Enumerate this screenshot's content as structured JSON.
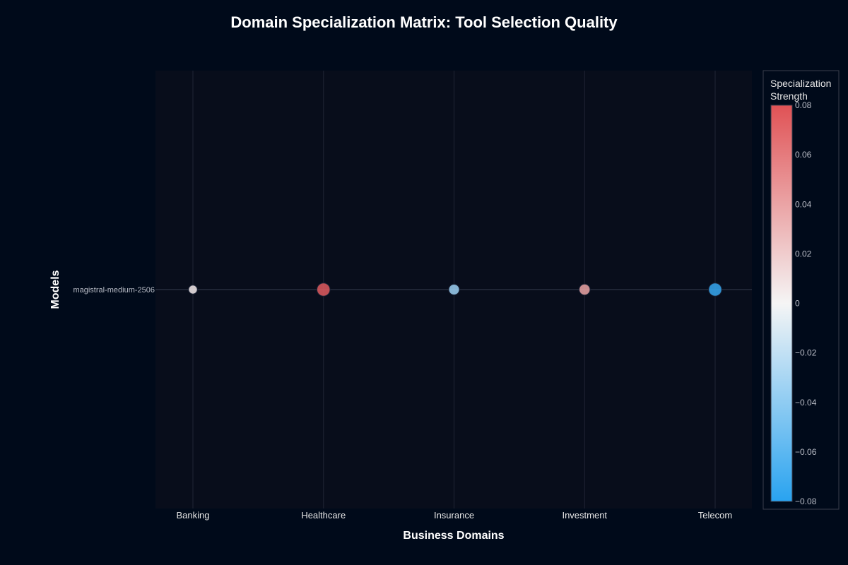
{
  "chart_data": {
    "type": "scatter",
    "title": "Domain Specialization Matrix: Tool Selection Quality",
    "xlabel": "Business Domains",
    "ylabel": "Models",
    "categories": [
      "Banking",
      "Healthcare",
      "Insurance",
      "Investment",
      "Telecom"
    ],
    "models": [
      "magistral-medium-2506"
    ],
    "points": [
      {
        "model": "magistral-medium-2506",
        "domain": "Banking",
        "value": 0.005
      },
      {
        "model": "magistral-medium-2506",
        "domain": "Healthcare",
        "value": 0.075
      },
      {
        "model": "magistral-medium-2506",
        "domain": "Insurance",
        "value": -0.035
      },
      {
        "model": "magistral-medium-2506",
        "domain": "Investment",
        "value": 0.04
      },
      {
        "model": "magistral-medium-2506",
        "domain": "Telecom",
        "value": -0.075
      }
    ],
    "colorbar": {
      "title_lines": [
        "Specialization",
        "Strength"
      ],
      "range": [
        -0.08,
        0.08
      ],
      "ticks": [
        {
          "value": 0.08,
          "label": "0.08"
        },
        {
          "value": 0.06,
          "label": "0.06"
        },
        {
          "value": 0.04,
          "label": "0.04"
        },
        {
          "value": 0.02,
          "label": "0.02"
        },
        {
          "value": 0,
          "label": "0"
        },
        {
          "value": -0.02,
          "label": "−0.02"
        },
        {
          "value": -0.04,
          "label": "−0.04"
        },
        {
          "value": -0.06,
          "label": "−0.06"
        },
        {
          "value": -0.08,
          "label": "−0.08"
        }
      ],
      "colors": [
        "#29a3f0",
        "#f5f5f5",
        "#e05255"
      ]
    },
    "colors": {
      "background": "#000a1a",
      "plot_background": "#080d1b",
      "grid": "#1f2535"
    },
    "legend_placement": "right",
    "grid": true
  }
}
